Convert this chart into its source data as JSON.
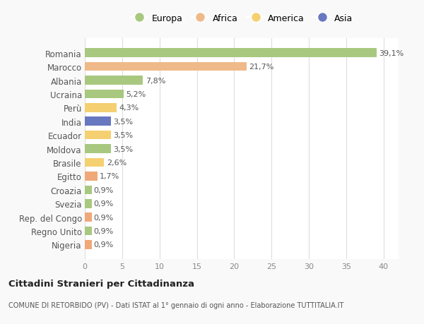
{
  "categories": [
    "Romania",
    "Marocco",
    "Albania",
    "Ucraina",
    "Perù",
    "India",
    "Ecuador",
    "Moldova",
    "Brasile",
    "Egitto",
    "Croazia",
    "Svezia",
    "Rep. del Congo",
    "Regno Unito",
    "Nigeria"
  ],
  "values": [
    39.1,
    21.7,
    7.8,
    5.2,
    4.3,
    3.5,
    3.5,
    3.5,
    2.6,
    1.7,
    0.9,
    0.9,
    0.9,
    0.9,
    0.9
  ],
  "labels": [
    "39,1%",
    "21,7%",
    "7,8%",
    "5,2%",
    "4,3%",
    "3,5%",
    "3,5%",
    "3,5%",
    "2,6%",
    "1,7%",
    "0,9%",
    "0,9%",
    "0,9%",
    "0,9%",
    "0,9%"
  ],
  "colors": [
    "#a8c880",
    "#f0b98a",
    "#a8c880",
    "#a8c880",
    "#f5d070",
    "#6878c0",
    "#f5d070",
    "#a8c880",
    "#f5d070",
    "#f0a878",
    "#a8c880",
    "#a8c880",
    "#f0a878",
    "#a8c880",
    "#f0a878"
  ],
  "legend_labels": [
    "Europa",
    "Africa",
    "America",
    "Asia"
  ],
  "legend_colors": [
    "#a8c880",
    "#f0b98a",
    "#f5d070",
    "#6878c0"
  ],
  "title": "Cittadini Stranieri per Cittadinanza",
  "subtitle": "COMUNE DI RETORBIDO (PV) - Dati ISTAT al 1° gennaio di ogni anno - Elaborazione TUTTITALIA.IT",
  "xlim": [
    0,
    42
  ],
  "xticks": [
    0,
    5,
    10,
    15,
    20,
    25,
    30,
    35,
    40
  ],
  "background_color": "#f9f9f9",
  "bar_background": "#ffffff",
  "grid_color": "#dddddd"
}
